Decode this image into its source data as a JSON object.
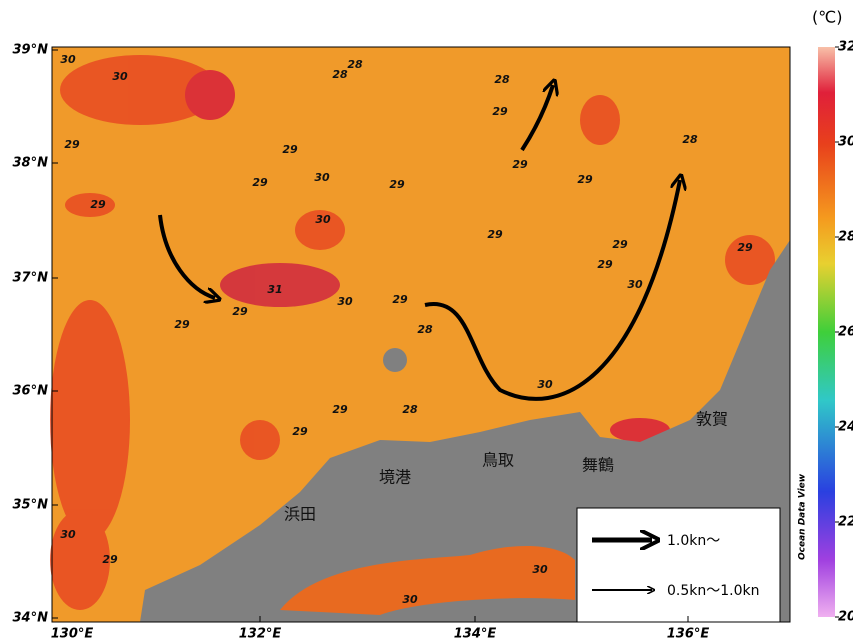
{
  "map": {
    "lat_labels": [
      "39°N",
      "38°N",
      "37°N",
      "36°N",
      "35°N",
      "34°N"
    ],
    "lon_labels": [
      "130°E",
      "132°E",
      "134°E",
      "136°E"
    ],
    "colorbar": {
      "unit": "(℃)",
      "ticks": [
        32,
        30,
        28,
        26,
        24,
        22,
        20
      ],
      "credit": "Ocean Data View"
    },
    "places": [
      "敦賀",
      "舞鶴",
      "鳥取",
      "境港",
      "浜田"
    ],
    "legend": [
      "1.0kn〜",
      "0.5kn〜1.0kn"
    ],
    "contour_labels": [
      30,
      30,
      29,
      29,
      28,
      28,
      29,
      30,
      29,
      30,
      31,
      30,
      29,
      29,
      28,
      29,
      28,
      29,
      29,
      29,
      29,
      28,
      29,
      29,
      30,
      29,
      30,
      28,
      29,
      29,
      30,
      29,
      30,
      30,
      29
    ]
  }
}
